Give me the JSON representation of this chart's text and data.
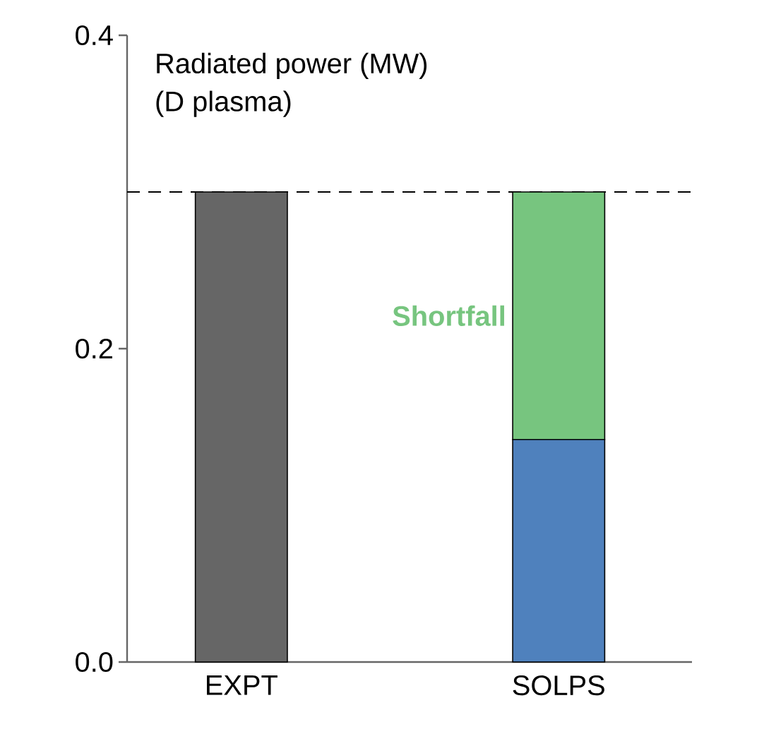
{
  "chart_data": {
    "type": "bar",
    "title": "Radiated power (MW)",
    "subtitle": "(D plasma)",
    "categories": [
      "EXPT",
      "SOLPS"
    ],
    "stacked": true,
    "series": [
      {
        "colors": [
          "#666666",
          "#4f81bd"
        ],
        "values": [
          0.3,
          0.142
        ]
      },
      {
        "name": "Shortfall",
        "color": "#77c57f",
        "values": [
          null,
          0.158
        ]
      }
    ],
    "ylim": [
      0,
      0.4
    ],
    "yticks": [
      {
        "value": 0,
        "label": "0.0"
      },
      0.2,
      0.4
    ],
    "ref_lines": [
      {
        "axis": "y",
        "value": 0.3,
        "color": "#000000",
        "line_style": "dashed"
      }
    ]
  }
}
